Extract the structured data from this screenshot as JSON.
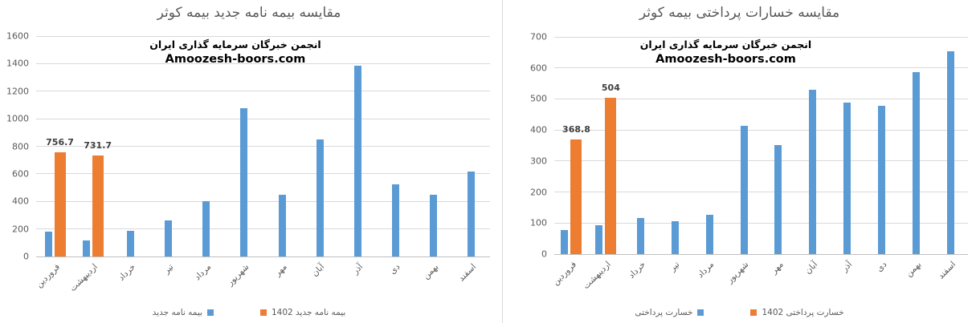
{
  "colors": {
    "series_blue": "#5B9BD5",
    "series_orange": "#ED7D31",
    "gridline": "#D9D9D9",
    "axis_text": "#595959",
    "title_text": "#595959",
    "data_label_text": "#3F3F3F"
  },
  "chart_data": [
    {
      "type": "bar",
      "title": "مقایسه بیمه نامه جدید بیمه کوثر",
      "annotation": [
        "انجمن خبرگان سرمایه گذاری ایران",
        "Amoozesh-boors.com"
      ],
      "categories": [
        "فروردین",
        "اردیبهشت",
        "خرداد",
        "تیر",
        "مرداد",
        "شهریور",
        "مهر",
        "آبان",
        "آذر",
        "دی",
        "بهمن",
        "اسفند"
      ],
      "series": [
        {
          "name": "بیمه نامه جدید",
          "color": "#5B9BD5",
          "values": [
            180,
            115,
            185,
            260,
            400,
            1075,
            450,
            850,
            1385,
            525,
            450,
            615
          ]
        },
        {
          "name": "بیمه نامه جدید 1402",
          "color": "#ED7D31",
          "values": [
            756.7,
            731.7,
            null,
            null,
            null,
            null,
            null,
            null,
            null,
            null,
            null,
            null
          ],
          "value_labels": [
            "756.7",
            "731.7",
            null,
            null,
            null,
            null,
            null,
            null,
            null,
            null,
            null,
            null
          ]
        }
      ],
      "ylim": [
        0,
        1600
      ],
      "ytick_step": 200,
      "yticks": [
        0,
        200,
        400,
        600,
        800,
        1000,
        1200,
        1400,
        1600
      ],
      "grid": true,
      "legend_position": "bottom"
    },
    {
      "type": "bar",
      "title": "مقایسه خسارات پرداختی بیمه کوثر",
      "annotation": [
        "انجمن خبرگان سرمایه گذاری ایران",
        "Amoozesh-boors.com"
      ],
      "categories": [
        "فروردین",
        "اردیبهشت",
        "خرداد",
        "تیر",
        "مرداد",
        "شهریور",
        "مهر",
        "آبان",
        "آذر",
        "دی",
        "بهمن",
        "اسفند"
      ],
      "series": [
        {
          "name": "خسارت پرداختی",
          "color": "#5B9BD5",
          "values": [
            78,
            93,
            116,
            107,
            127,
            413,
            352,
            530,
            488,
            477,
            586,
            653
          ]
        },
        {
          "name": "خسارت پرداختی 1402",
          "color": "#ED7D31",
          "values": [
            368.8,
            504,
            null,
            null,
            null,
            null,
            null,
            null,
            null,
            null,
            null,
            null
          ],
          "value_labels": [
            "368.8",
            "504",
            null,
            null,
            null,
            null,
            null,
            null,
            null,
            null,
            null,
            null
          ]
        }
      ],
      "ylim": [
        0,
        700
      ],
      "ytick_step": 100,
      "yticks": [
        0,
        100,
        200,
        300,
        400,
        500,
        600,
        700
      ],
      "grid": true,
      "legend_position": "bottom"
    }
  ]
}
